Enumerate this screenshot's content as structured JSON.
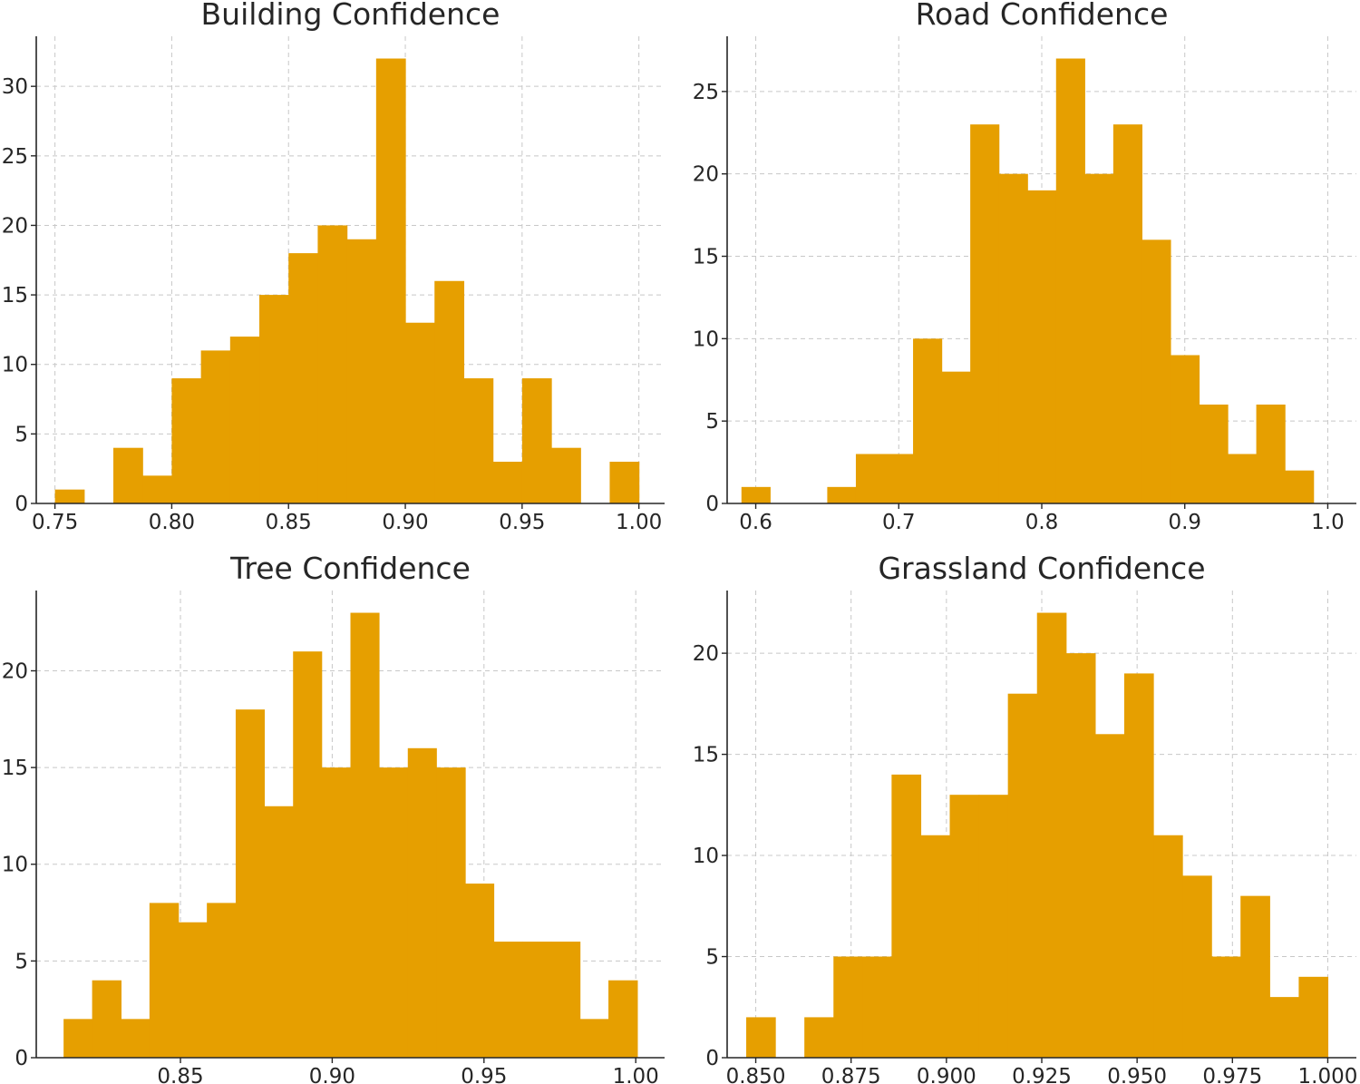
{
  "colors": {
    "bar": "#E69F00",
    "text": "#262626",
    "grid": "#c8c8c8"
  },
  "chart_data": [
    {
      "type": "bar",
      "title": "Building Confidence",
      "xlim": [
        0.742,
        1.011
      ],
      "ylim": [
        0,
        33.6
      ],
      "bin_edges": [
        0.75,
        0.7625,
        0.775,
        0.7875,
        0.8,
        0.8125,
        0.825,
        0.8375,
        0.85,
        0.8625,
        0.875,
        0.8875,
        0.9,
        0.9125,
        0.925,
        0.9375,
        0.95,
        0.9625,
        0.975,
        0.9875,
        1.0
      ],
      "values": [
        1,
        0,
        4,
        2,
        9,
        11,
        12,
        15,
        18,
        20,
        19,
        32,
        13,
        16,
        9,
        3,
        9,
        4,
        0,
        3
      ],
      "xticks": [
        0.75,
        0.8,
        0.85,
        0.9,
        0.95,
        1.0
      ],
      "xtick_labels": [
        "0.75",
        "0.80",
        "0.85",
        "0.90",
        "0.95",
        "1.00"
      ],
      "yticks": [
        0,
        5,
        10,
        15,
        20,
        25,
        30
      ],
      "ytick_labels": [
        "0",
        "5",
        "10",
        "15",
        "20",
        "25",
        "30"
      ]
    },
    {
      "type": "bar",
      "title": "Road Confidence",
      "xlim": [
        0.58,
        1.02
      ],
      "ylim": [
        0,
        28.35
      ],
      "bin_edges": [
        0.59,
        0.61,
        0.63,
        0.65,
        0.67,
        0.69,
        0.71,
        0.73,
        0.75,
        0.77,
        0.79,
        0.81,
        0.83,
        0.85,
        0.87,
        0.89,
        0.91,
        0.93,
        0.95,
        0.97,
        0.99
      ],
      "values": [
        1,
        0,
        0,
        1,
        3,
        3,
        10,
        8,
        23,
        20,
        19,
        27,
        20,
        23,
        16,
        9,
        6,
        3,
        6,
        2
      ],
      "xticks": [
        0.6,
        0.7,
        0.8,
        0.9,
        1.0
      ],
      "xtick_labels": [
        "0.6",
        "0.7",
        "0.8",
        "0.9",
        "1.0"
      ],
      "yticks": [
        0,
        5,
        10,
        15,
        20,
        25
      ],
      "ytick_labels": [
        "0",
        "5",
        "10",
        "15",
        "20",
        "25"
      ]
    },
    {
      "type": "bar",
      "title": "Tree Confidence",
      "xlim": [
        0.8025,
        1.0095
      ],
      "ylim": [
        0,
        24.15
      ],
      "bin_edges": [
        0.8115,
        0.8209,
        0.8304,
        0.8398,
        0.8493,
        0.8587,
        0.8682,
        0.8776,
        0.8871,
        0.8965,
        0.906,
        0.9154,
        0.9249,
        0.9343,
        0.9438,
        0.9532,
        0.9627,
        0.9721,
        0.9816,
        0.991,
        1.0005
      ],
      "values": [
        2,
        4,
        2,
        8,
        7,
        8,
        18,
        13,
        21,
        15,
        23,
        15,
        16,
        15,
        9,
        6,
        6,
        6,
        2,
        4
      ],
      "xticks": [
        0.85,
        0.9,
        0.95,
        1.0
      ],
      "xtick_labels": [
        "0.85",
        "0.90",
        "0.95",
        "1.00"
      ],
      "yticks": [
        0,
        5,
        10,
        15,
        20
      ],
      "ytick_labels": [
        "0",
        "5",
        "10",
        "15",
        "20"
      ]
    },
    {
      "type": "bar",
      "title": "Grassland Confidence",
      "xlim": [
        0.8425,
        1.0075
      ],
      "ylim": [
        0,
        23.1
      ],
      "bin_edges": [
        0.8475,
        0.85512,
        0.86275,
        0.87038,
        0.878,
        0.88562,
        0.89325,
        0.90087,
        0.9085,
        0.91612,
        0.92375,
        0.93137,
        0.939,
        0.94662,
        0.95425,
        0.96187,
        0.9695,
        0.97712,
        0.98475,
        0.99238,
        1.0
      ],
      "values": [
        2,
        0,
        2,
        5,
        5,
        14,
        11,
        13,
        13,
        18,
        22,
        20,
        16,
        19,
        11,
        9,
        5,
        8,
        3,
        4
      ],
      "xticks": [
        0.85,
        0.875,
        0.9,
        0.925,
        0.95,
        0.975,
        1.0
      ],
      "xtick_labels": [
        "0.850",
        "0.875",
        "0.900",
        "0.925",
        "0.950",
        "0.975",
        "1.000"
      ],
      "yticks": [
        0,
        5,
        10,
        15,
        20
      ],
      "ytick_labels": [
        "0",
        "5",
        "10",
        "15",
        "20"
      ]
    }
  ]
}
